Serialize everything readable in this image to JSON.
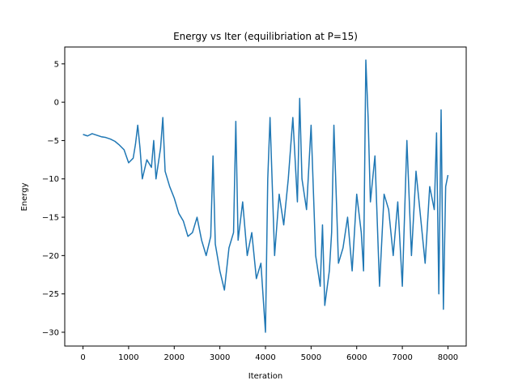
{
  "chart_data": {
    "type": "line",
    "title": "Energy vs Iter (equilibriation at P=15)",
    "xlabel": "Iteration",
    "ylabel": "Energy",
    "xlim": [
      -400,
      8400
    ],
    "ylim": [
      -31.8,
      7.2
    ],
    "xticks": [
      0,
      1000,
      2000,
      3000,
      4000,
      5000,
      6000,
      7000,
      8000
    ],
    "xtick_labels": [
      "0",
      "1000",
      "2000",
      "3000",
      "4000",
      "5000",
      "6000",
      "7000",
      "8000"
    ],
    "yticks": [
      5,
      0,
      -5,
      -10,
      -15,
      -20,
      -25,
      -30
    ],
    "ytick_labels": [
      "5",
      "0",
      "−5",
      "−10",
      "−15",
      "−20",
      "−25",
      "−30"
    ],
    "grid": false,
    "series": [
      {
        "color": "#1f77b4",
        "x": [
          0,
          100,
          200,
          300,
          400,
          500,
          600,
          700,
          800,
          900,
          1000,
          1100,
          1150,
          1200,
          1250,
          1300,
          1400,
          1500,
          1550,
          1600,
          1700,
          1750,
          1800,
          1900,
          2000,
          2100,
          2200,
          2300,
          2400,
          2500,
          2600,
          2700,
          2800,
          2850,
          2900,
          3000,
          3100,
          3200,
          3300,
          3350,
          3400,
          3500,
          3600,
          3700,
          3800,
          3900,
          4000,
          4050,
          4100,
          4200,
          4300,
          4400,
          4500,
          4600,
          4700,
          4750,
          4800,
          4900,
          5000,
          5100,
          5200,
          5250,
          5300,
          5400,
          5450,
          5500,
          5600,
          5700,
          5800,
          5900,
          6000,
          6100,
          6150,
          6200,
          6250,
          6300,
          6400,
          6500,
          6600,
          6700,
          6800,
          6900,
          7000,
          7100,
          7200,
          7300,
          7400,
          7500,
          7600,
          7700,
          7750,
          7800,
          7850,
          7900,
          7950,
          8000
        ],
        "values": [
          -4.2,
          -4.4,
          -4.1,
          -4.3,
          -4.5,
          -4.6,
          -4.8,
          -5.1,
          -5.6,
          -6.2,
          -7.9,
          -7.3,
          -5.5,
          -3.0,
          -6.0,
          -10.0,
          -7.5,
          -8.5,
          -5.0,
          -10.0,
          -6.0,
          -2.0,
          -9.0,
          -11.0,
          -12.5,
          -14.5,
          -15.5,
          -17.5,
          -17.0,
          -15.0,
          -18.0,
          -20.0,
          -17.5,
          -7.0,
          -18.5,
          -22.0,
          -24.5,
          -19.0,
          -17.0,
          -2.5,
          -18.0,
          -13.0,
          -20.0,
          -17.0,
          -23.0,
          -21.0,
          -30.0,
          -10.0,
          -2.0,
          -20.0,
          -12.0,
          -16.0,
          -10.0,
          -2.0,
          -13.0,
          0.5,
          -10.0,
          -14.0,
          -3.0,
          -20.0,
          -24.0,
          -16.0,
          -26.5,
          -22.0,
          -17.0,
          -3.0,
          -21.0,
          -19.0,
          -15.0,
          -22.0,
          -12.0,
          -17.0,
          -22.0,
          5.5,
          -2.0,
          -13.0,
          -7.0,
          -24.0,
          -12.0,
          -14.0,
          -20.0,
          -13.0,
          -24.0,
          -5.0,
          -20.0,
          -9.0,
          -15.0,
          -21.0,
          -11.0,
          -14.0,
          -4.0,
          -25.0,
          -1.0,
          -27.0,
          -11.0,
          -9.5
        ]
      }
    ]
  }
}
